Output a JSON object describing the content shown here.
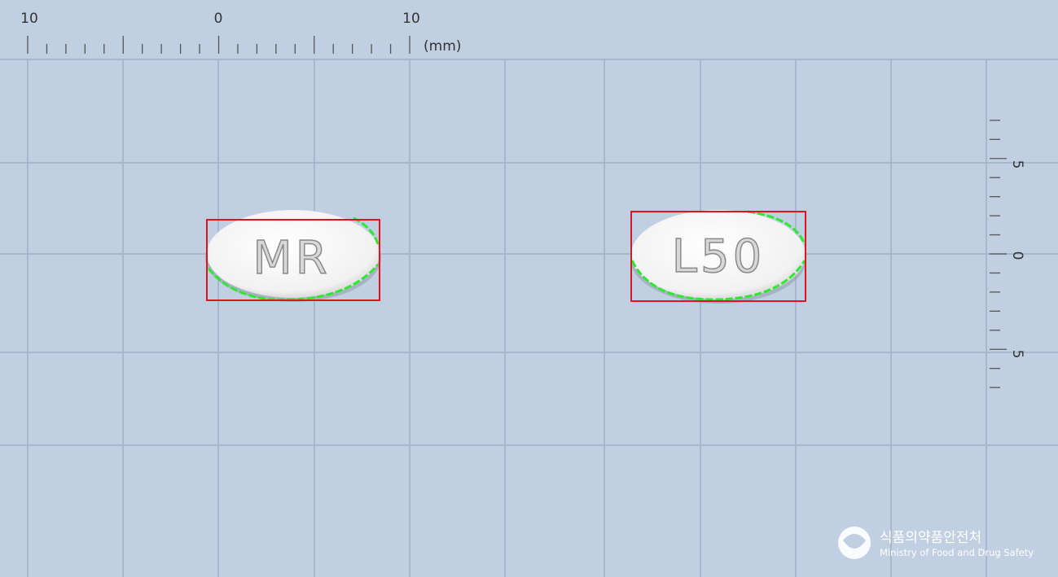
{
  "ruler_top": {
    "labels": [
      "10",
      "0",
      "10"
    ],
    "unit": "(mm)"
  },
  "ruler_right": {
    "labels": [
      "5",
      "0",
      "5"
    ]
  },
  "pills": [
    {
      "imprint": "MR"
    },
    {
      "imprint": "L50"
    }
  ],
  "logo": {
    "name_ko": "식품의약품안전처",
    "name_en": "Ministry of Food and Drug Safety"
  }
}
